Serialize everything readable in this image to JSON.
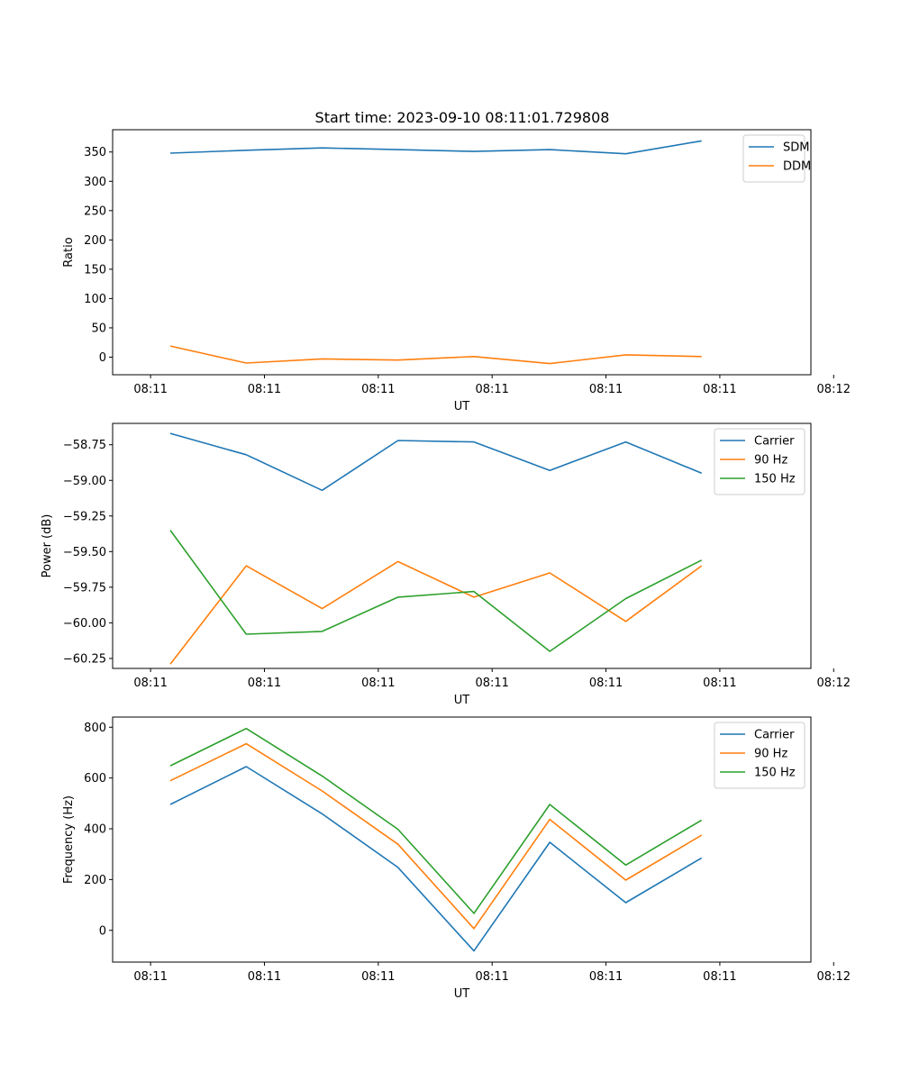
{
  "figure": {
    "title": "Start time: 2023-09-10 08:11:01.729808"
  },
  "colors": {
    "blue": "#1f77b4",
    "orange": "#ff7f0e",
    "green": "#2ca02c"
  },
  "chart_data": [
    {
      "type": "line",
      "name": "ratio",
      "title": "Start time: 2023-09-10 08:11:01.729808",
      "xlabel": "UT",
      "ylabel": "Ratio",
      "xlim": [
        -0.25,
        4.35
      ],
      "ylim": [
        -30,
        388
      ],
      "x": [
        0.13,
        0.63,
        1.13,
        1.63,
        2.13,
        2.63,
        3.13,
        3.63
      ],
      "xticks": [
        0,
        0.75,
        1.5,
        2.25,
        3.0,
        3.75,
        4.5
      ],
      "xticklabels": [
        "08:11",
        "08:11",
        "08:11",
        "08:11",
        "08:11",
        "08:11",
        "08:12"
      ],
      "yticks": [
        0,
        50,
        100,
        150,
        200,
        250,
        300,
        350
      ],
      "yticklabels": [
        "0",
        "50",
        "100",
        "150",
        "200",
        "250",
        "300",
        "350"
      ],
      "legend": "top-right",
      "series": [
        {
          "name": "SDM",
          "color": "blue",
          "values": [
            348,
            353,
            357,
            354,
            351,
            354,
            347,
            369
          ]
        },
        {
          "name": "DDM",
          "color": "orange",
          "values": [
            19,
            -10,
            -3,
            -5,
            1,
            -11,
            4,
            1
          ]
        }
      ]
    },
    {
      "type": "line",
      "name": "power",
      "title": "",
      "xlabel": "UT",
      "ylabel": "Power (dB)",
      "xlim": [
        -0.25,
        4.35
      ],
      "ylim": [
        -60.32,
        -58.6
      ],
      "x": [
        0.13,
        0.63,
        1.13,
        1.63,
        2.13,
        2.63,
        3.13,
        3.63
      ],
      "xticks": [
        0,
        0.75,
        1.5,
        2.25,
        3.0,
        3.75,
        4.5
      ],
      "xticklabels": [
        "08:11",
        "08:11",
        "08:11",
        "08:11",
        "08:11",
        "08:11",
        "08:12"
      ],
      "yticks": [
        -58.75,
        -59.0,
        -59.25,
        -59.5,
        -59.75,
        -60.0,
        -60.25
      ],
      "yticklabels": [
        "−58.75",
        "−59.00",
        "−59.25",
        "−59.50",
        "−59.75",
        "−60.00",
        "−60.25"
      ],
      "legend": "top-right",
      "series": [
        {
          "name": "Carrier",
          "color": "blue",
          "values": [
            -58.67,
            -58.82,
            -59.07,
            -58.72,
            -58.73,
            -58.93,
            -58.73,
            -58.95
          ]
        },
        {
          "name": "90 Hz",
          "color": "orange",
          "values": [
            -60.29,
            -59.6,
            -59.9,
            -59.57,
            -59.82,
            -59.65,
            -59.99,
            -59.6
          ]
        },
        {
          "name": "150 Hz",
          "color": "green",
          "values": [
            -59.35,
            -60.08,
            -60.06,
            -59.82,
            -59.78,
            -60.2,
            -59.83,
            -59.56
          ]
        }
      ]
    },
    {
      "type": "line",
      "name": "frequency",
      "title": "",
      "xlabel": "UT",
      "ylabel": "Frequency (Hz)",
      "xlim": [
        -0.25,
        4.35
      ],
      "ylim": [
        -125,
        840
      ],
      "x": [
        0.13,
        0.63,
        1.13,
        1.63,
        2.13,
        2.63,
        3.13,
        3.63
      ],
      "xticks": [
        0,
        0.75,
        1.5,
        2.25,
        3.0,
        3.75,
        4.5
      ],
      "xticklabels": [
        "08:11",
        "08:11",
        "08:11",
        "08:11",
        "08:11",
        "08:11",
        "08:12"
      ],
      "yticks": [
        0,
        200,
        400,
        600,
        800
      ],
      "yticklabels": [
        "0",
        "200",
        "400",
        "600",
        "800"
      ],
      "legend": "top-right",
      "series": [
        {
          "name": "Carrier",
          "color": "blue",
          "values": [
            496,
            645,
            459,
            248,
            -81,
            347,
            109,
            285
          ]
        },
        {
          "name": "90 Hz",
          "color": "orange",
          "values": [
            589,
            735,
            549,
            339,
            7,
            437,
            198,
            375
          ]
        },
        {
          "name": "150 Hz",
          "color": "green",
          "values": [
            648,
            795,
            608,
            398,
            67,
            496,
            257,
            434
          ]
        }
      ]
    }
  ]
}
